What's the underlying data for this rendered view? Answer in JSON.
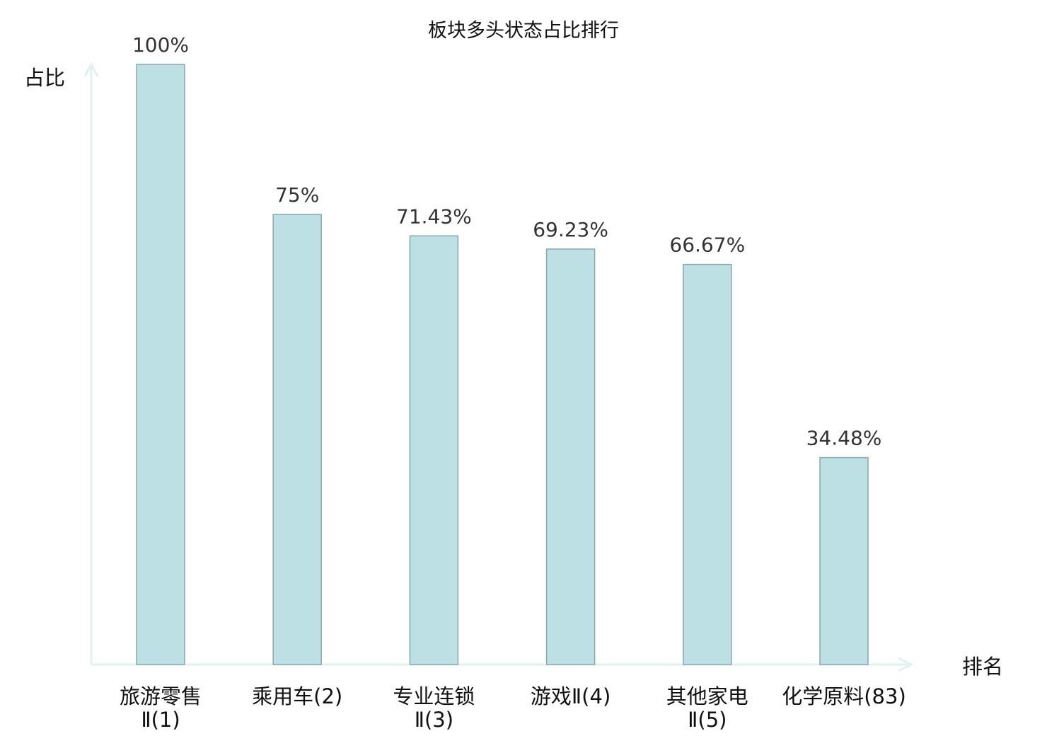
{
  "chart_data": {
    "type": "bar",
    "title": "板块多头状态占比排行",
    "ylabel": "占比",
    "xlabel": "排名",
    "ylim": [
      0,
      100
    ],
    "grid": false,
    "categories": [
      {
        "lines": [
          "旅游零售",
          "Ⅱ(1)"
        ],
        "highlight": false
      },
      {
        "lines": [
          "乘用车(2)"
        ],
        "highlight": false
      },
      {
        "lines": [
          "专业连锁",
          "Ⅱ(3)"
        ],
        "highlight": false
      },
      {
        "lines": [
          "游戏Ⅱ(4)"
        ],
        "highlight": false
      },
      {
        "lines": [
          "其他家电",
          "Ⅱ(5)"
        ],
        "highlight": false
      },
      {
        "lines": [
          "化学原料(83)"
        ],
        "highlight": true
      }
    ],
    "values": [
      100,
      75,
      71.43,
      69.23,
      66.67,
      34.48
    ],
    "value_labels": [
      "100%",
      "75%",
      "71.43%",
      "69.23%",
      "66.67%",
      "34.48%"
    ],
    "colors": {
      "bar": "#bce0e3",
      "bar_edge": "#8aa8aa",
      "axis": "#dff2ef",
      "highlight": "#e8120c",
      "text": "#111111"
    }
  }
}
